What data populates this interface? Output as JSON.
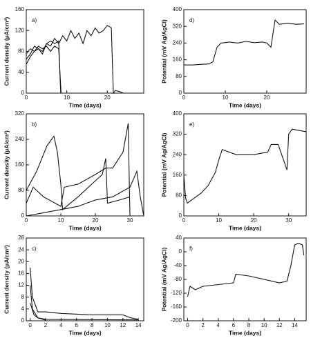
{
  "chart_data": [
    {
      "type": "line",
      "label": "a)",
      "xlabel": "Time (days)",
      "ylabel": "Current density (μA/cm²)",
      "xlim": [
        0,
        29
      ],
      "ylim": [
        0,
        160
      ],
      "xticks": [
        0,
        10,
        20
      ],
      "yticks": [
        0,
        40,
        80,
        120,
        160
      ],
      "series": [
        {
          "color": "#111",
          "x": [
            0,
            1,
            2,
            3,
            4,
            5,
            6,
            7,
            8,
            9,
            10,
            11,
            12,
            13,
            14,
            15,
            16,
            17,
            18,
            19,
            20,
            21,
            21.5,
            22,
            23,
            24
          ],
          "values": [
            55,
            70,
            80,
            85,
            75,
            95,
            90,
            105,
            95,
            110,
            100,
            120,
            105,
            115,
            95,
            120,
            110,
            125,
            115,
            120,
            130,
            125,
            0,
            5,
            3,
            0
          ]
        },
        {
          "color": "#111",
          "x": [
            0,
            1,
            2,
            3,
            4,
            5,
            6,
            7,
            8,
            8.5,
            10
          ],
          "values": [
            65,
            75,
            90,
            85,
            80,
            95,
            100,
            95,
            100,
            0,
            0
          ]
        },
        {
          "color": "#111",
          "x": [
            0,
            1,
            2,
            3,
            4,
            5,
            6,
            7,
            8,
            8.6
          ],
          "values": [
            75,
            85,
            80,
            90,
            85,
            90,
            80,
            90,
            85,
            0
          ]
        }
      ]
    },
    {
      "type": "line",
      "label": "b)",
      "xlabel": "Time (days)",
      "ylabel": "Current density (μA/cm²)",
      "xlim": [
        0,
        34
      ],
      "ylim": [
        0,
        320
      ],
      "xticks": [
        0,
        10,
        20,
        30
      ],
      "yticks": [
        0,
        80,
        160,
        240,
        320
      ],
      "series": [
        {
          "color": "#111",
          "x": [
            0,
            3,
            6,
            8,
            9,
            10,
            10.5,
            15,
            20,
            22,
            23,
            23.5,
            27,
            30
          ],
          "values": [
            80,
            140,
            220,
            250,
            200,
            100,
            20,
            60,
            110,
            130,
            180,
            40,
            50,
            60
          ]
        },
        {
          "color": "#111",
          "x": [
            0,
            2,
            5,
            10,
            11,
            15,
            20,
            23,
            25,
            28,
            29.5,
            30
          ],
          "values": [
            40,
            90,
            60,
            30,
            90,
            100,
            130,
            150,
            150,
            200,
            290,
            0
          ]
        },
        {
          "color": "#111",
          "x": [
            0,
            5,
            10,
            15,
            20,
            25,
            30,
            32,
            33,
            34
          ],
          "values": [
            0,
            10,
            20,
            30,
            50,
            60,
            90,
            140,
            60,
            0
          ]
        }
      ]
    },
    {
      "type": "line",
      "label": "c)",
      "xlabel": "Time (days)",
      "ylabel": "Current density (μA/cm²)",
      "xlim": [
        -0.5,
        14.7
      ],
      "ylim": [
        0,
        28
      ],
      "xticks": [
        0,
        2,
        4,
        6,
        8,
        10,
        12,
        14
      ],
      "yticks": [
        0,
        4,
        8,
        12,
        16,
        20,
        24,
        28
      ],
      "series": [
        {
          "color": "#111",
          "x": [
            0,
            0.3,
            1,
            2,
            4,
            8,
            12,
            13,
            14
          ],
          "values": [
            18,
            8,
            3,
            3,
            2.5,
            2,
            2,
            1,
            0.5
          ]
        },
        {
          "color": "#111",
          "x": [
            0,
            0.3,
            1,
            2,
            14
          ],
          "values": [
            12,
            4,
            1,
            0.5,
            0.3
          ]
        },
        {
          "color": "#111",
          "x": [
            0,
            0.5,
            1,
            2
          ],
          "values": [
            6,
            2,
            1,
            0.2
          ]
        }
      ]
    },
    {
      "type": "line",
      "label": "d)",
      "xlabel": "Time (days)",
      "ylabel": "Potential (mV Ag/AgCl)",
      "xlim": [
        0,
        29.5
      ],
      "ylim": [
        0,
        400
      ],
      "xticks": [
        0,
        10,
        20
      ],
      "yticks": [
        0,
        80,
        160,
        240,
        320,
        400
      ],
      "series": [
        {
          "color": "#111",
          "x": [
            0,
            2,
            4,
            6,
            7,
            8,
            9,
            11,
            13,
            15,
            17,
            19,
            20,
            21,
            22,
            23,
            25,
            27,
            29
          ],
          "values": [
            135,
            135,
            138,
            140,
            150,
            220,
            240,
            245,
            240,
            248,
            242,
            245,
            240,
            220,
            350,
            330,
            335,
            330,
            332
          ]
        }
      ]
    },
    {
      "type": "line",
      "label": "e)",
      "xlabel": "Time (days)",
      "ylabel": "Potential (mV Ag/AgCl)",
      "xlim": [
        0,
        35
      ],
      "ylim": [
        0,
        400
      ],
      "xticks": [
        0,
        10,
        20,
        30
      ],
      "yticks": [
        0,
        80,
        160,
        240,
        320,
        400
      ],
      "series": [
        {
          "color": "#111",
          "x": [
            0,
            0.5,
            1,
            3,
            5,
            7,
            9,
            10,
            11,
            13,
            15,
            20,
            24,
            25,
            27,
            28,
            29,
            29.5,
            30,
            31,
            35
          ],
          "values": [
            160,
            70,
            50,
            70,
            90,
            120,
            170,
            220,
            260,
            250,
            240,
            240,
            250,
            280,
            280,
            240,
            200,
            180,
            320,
            340,
            330
          ]
        }
      ]
    },
    {
      "type": "line",
      "label": "f)",
      "xlabel": "Time (days)",
      "ylabel": "Potential (mV Ag/AgCl)",
      "xlim": [
        -0.5,
        15.5
      ],
      "ylim": [
        -200,
        40
      ],
      "xticks": [
        0,
        2,
        4,
        6,
        8,
        10,
        12,
        14
      ],
      "yticks": [
        -200,
        -160,
        -120,
        -80,
        -40,
        0,
        40
      ],
      "series": [
        {
          "color": "#111",
          "x": [
            0,
            0.3,
            1,
            2,
            4,
            6,
            6.3,
            8,
            12,
            13,
            13.5,
            14,
            14.5,
            15,
            15.2
          ],
          "values": [
            -130,
            -100,
            -110,
            -100,
            -95,
            -90,
            -65,
            -70,
            -90,
            -85,
            -40,
            20,
            25,
            20,
            -10
          ]
        }
      ]
    }
  ]
}
